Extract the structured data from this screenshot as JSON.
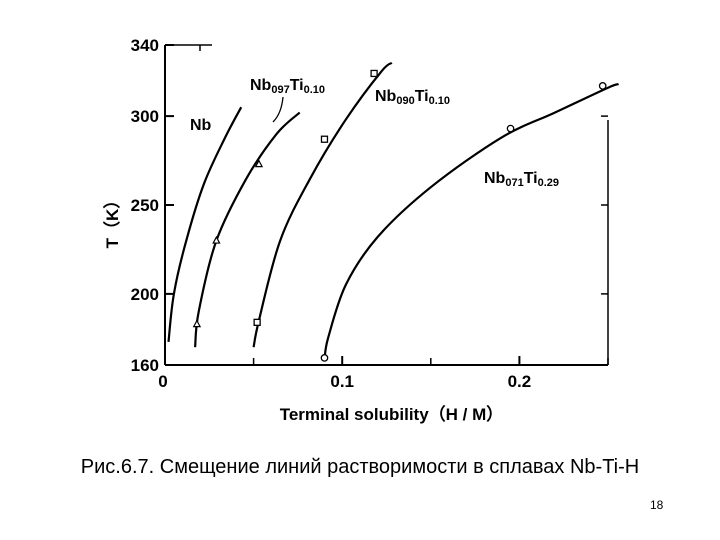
{
  "chart_data": {
    "type": "line",
    "title": "",
    "xlabel": "Terminal solubility（H / M）",
    "ylabel": "T（K）",
    "xlim": [
      0,
      0.25
    ],
    "ylim": [
      160,
      340
    ],
    "x_ticks": [
      0,
      0.1,
      0.2
    ],
    "x_tick_labels": [
      "0",
      "0.1",
      "0.2"
    ],
    "y_ticks": [
      160,
      200,
      250,
      300,
      340
    ],
    "y_tick_labels": [
      "160",
      "200",
      "250",
      "300",
      "340"
    ],
    "grid": false,
    "legend": "none",
    "series": [
      {
        "name": "Nb",
        "curve": [
          [
            0.002,
            173
          ],
          [
            0.005,
            200
          ],
          [
            0.012,
            230
          ],
          [
            0.022,
            262
          ],
          [
            0.034,
            288
          ],
          [
            0.043,
            305
          ]
        ],
        "points": []
      },
      {
        "name": "Nb0.97Ti0.10",
        "marker": "triangle",
        "curve": [
          [
            0.017,
            170
          ],
          [
            0.019,
            190
          ],
          [
            0.029,
            230
          ],
          [
            0.046,
            265
          ],
          [
            0.063,
            290
          ],
          [
            0.076,
            302
          ]
        ],
        "points": [
          [
            0.018,
            183
          ],
          [
            0.029,
            230
          ],
          [
            0.053,
            273
          ]
        ]
      },
      {
        "name": "Nb0.90Ti0.10",
        "marker": "square",
        "curve": [
          [
            0.05,
            170
          ],
          [
            0.053,
            185
          ],
          [
            0.065,
            230
          ],
          [
            0.082,
            265
          ],
          [
            0.102,
            298
          ],
          [
            0.122,
            325
          ],
          [
            0.128,
            330
          ]
        ],
        "points": [
          [
            0.052,
            184
          ],
          [
            0.09,
            287
          ],
          [
            0.118,
            324
          ]
        ]
      },
      {
        "name": "Nb0.71Ti0.29",
        "marker": "circle",
        "curve": [
          [
            0.09,
            163
          ],
          [
            0.092,
            175
          ],
          [
            0.102,
            205
          ],
          [
            0.12,
            232
          ],
          [
            0.15,
            260
          ],
          [
            0.19,
            288
          ],
          [
            0.22,
            302
          ],
          [
            0.25,
            316
          ],
          [
            0.256,
            318
          ]
        ],
        "points": [
          [
            0.09,
            164
          ],
          [
            0.195,
            293
          ],
          [
            0.247,
            317
          ]
        ]
      }
    ]
  },
  "series_labels": [
    {
      "base": "Nb",
      "sub1": "",
      "mid": "",
      "sub2": ""
    },
    {
      "base": "Nb",
      "sub1": "097",
      "mid": "Ti",
      "sub2": "0.10"
    },
    {
      "base": "Nb",
      "sub1": "090",
      "mid": "Ti",
      "sub2": "0.10"
    },
    {
      "base": "Nb",
      "sub1": "071",
      "mid": "Ti",
      "sub2": "0.29"
    }
  ],
  "caption": "Рис.6.7. Смещение линий растворимости в сплавах Nb-Ti-H",
  "page_number": "18"
}
